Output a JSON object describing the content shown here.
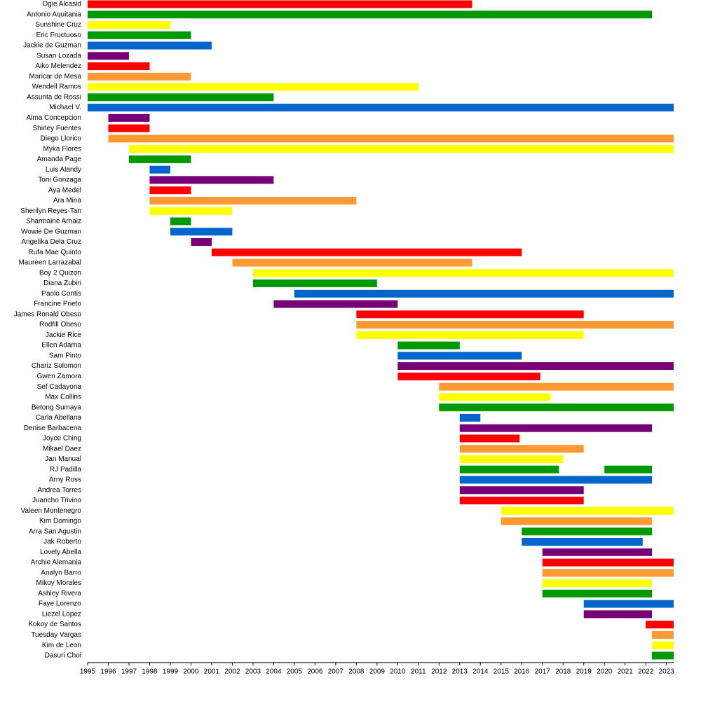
{
  "chart_data": {
    "type": "timeline",
    "xlim": [
      1995,
      2023.35
    ],
    "xticks": [
      1995,
      1996,
      1997,
      1998,
      1999,
      2000,
      2001,
      2002,
      2003,
      2004,
      2005,
      2006,
      2007,
      2008,
      2009,
      2010,
      2011,
      2012,
      2013,
      2014,
      2015,
      2016,
      2017,
      2018,
      2019,
      2020,
      2021,
      2022,
      2023
    ],
    "series": [
      {
        "name": "Ogie Alcasid",
        "color": "#ff0000",
        "values": [
          [
            1995,
            2013.6
          ]
        ]
      },
      {
        "name": "Antonio Aquitania",
        "color": "#009900",
        "values": [
          [
            1995,
            2022.3
          ]
        ]
      },
      {
        "name": "Sunshine Cruz",
        "color": "#ffff00",
        "values": [
          [
            1995,
            1999
          ]
        ]
      },
      {
        "name": "Eric Fructuoso",
        "color": "#009900",
        "values": [
          [
            1995,
            2000
          ]
        ]
      },
      {
        "name": "Jackie de Guzman",
        "color": "#0066cc",
        "values": [
          [
            1995,
            2001
          ]
        ]
      },
      {
        "name": "Susan Lozada",
        "color": "#770077",
        "values": [
          [
            1995,
            1997
          ]
        ]
      },
      {
        "name": "Aiko Melendez",
        "color": "#ff0000",
        "values": [
          [
            1995,
            1998
          ]
        ]
      },
      {
        "name": "Maricar de Mesa",
        "color": "#ff9933",
        "values": [
          [
            1995,
            2000
          ]
        ]
      },
      {
        "name": "Wendell Ramos",
        "color": "#ffff00",
        "values": [
          [
            1995,
            2011
          ]
        ]
      },
      {
        "name": "Assunta de Rossi",
        "color": "#009900",
        "values": [
          [
            1995,
            2004
          ]
        ]
      },
      {
        "name": "Michael V.",
        "color": "#0066cc",
        "values": [
          [
            1995,
            2023.35
          ]
        ]
      },
      {
        "name": "Alma Concepcion",
        "color": "#770077",
        "values": [
          [
            1996,
            1998
          ]
        ]
      },
      {
        "name": "Shirley Fuentes",
        "color": "#ff0000",
        "values": [
          [
            1996,
            1998
          ]
        ]
      },
      {
        "name": "Diego Llorico",
        "color": "#ff9933",
        "values": [
          [
            1996,
            2023.35
          ]
        ]
      },
      {
        "name": "Myka Flores",
        "color": "#ffff00",
        "values": [
          [
            1997,
            2023.35
          ]
        ]
      },
      {
        "name": "Amanda Page",
        "color": "#009900",
        "values": [
          [
            1997,
            2000
          ]
        ]
      },
      {
        "name": "Luis Alandy",
        "color": "#0066cc",
        "values": [
          [
            1998,
            1999
          ]
        ]
      },
      {
        "name": "Toni Gonzaga",
        "color": "#770077",
        "values": [
          [
            1998,
            2004
          ]
        ]
      },
      {
        "name": "Aya Medel",
        "color": "#ff0000",
        "values": [
          [
            1998,
            2000
          ]
        ]
      },
      {
        "name": "Ara Mina",
        "color": "#ff9933",
        "values": [
          [
            1998,
            2008
          ]
        ]
      },
      {
        "name": "Sherilyn Reyes-Tan",
        "color": "#ffff00",
        "values": [
          [
            1998,
            2002
          ]
        ]
      },
      {
        "name": "Sharmaine Arnaiz",
        "color": "#009900",
        "values": [
          [
            1999,
            2000
          ]
        ]
      },
      {
        "name": "Wowie De Guzman",
        "color": "#0066cc",
        "values": [
          [
            1999,
            2002
          ]
        ]
      },
      {
        "name": "Angelika Dela Cruz",
        "color": "#770077",
        "values": [
          [
            2000,
            2001
          ]
        ]
      },
      {
        "name": "Rufa Mae Quinto",
        "color": "#ff0000",
        "values": [
          [
            2001,
            2016
          ]
        ]
      },
      {
        "name": "Maureen Larrazabal",
        "color": "#ff9933",
        "values": [
          [
            2002,
            2013.6
          ]
        ]
      },
      {
        "name": "Boy 2 Quizon",
        "color": "#ffff00",
        "values": [
          [
            2003,
            2023.35
          ]
        ]
      },
      {
        "name": "Diana Zubiri",
        "color": "#009900",
        "values": [
          [
            2003,
            2009
          ]
        ]
      },
      {
        "name": "Paolo Contis",
        "color": "#0066cc",
        "values": [
          [
            2005,
            2023.35
          ]
        ]
      },
      {
        "name": "Francine Prieto",
        "color": "#770077",
        "values": [
          [
            2004,
            2010
          ]
        ]
      },
      {
        "name": "James Ronald Obeso",
        "color": "#ff0000",
        "values": [
          [
            2008,
            2019
          ]
        ]
      },
      {
        "name": "Rodfill Obeso",
        "color": "#ff9933",
        "values": [
          [
            2008,
            2023.35
          ]
        ]
      },
      {
        "name": "Jackie Rice",
        "color": "#ffff00",
        "values": [
          [
            2008,
            2019
          ]
        ]
      },
      {
        "name": "Ellen Adarna",
        "color": "#009900",
        "values": [
          [
            2010,
            2013
          ]
        ]
      },
      {
        "name": "Sam Pinto",
        "color": "#0066cc",
        "values": [
          [
            2010,
            2016
          ]
        ]
      },
      {
        "name": "Chariz Solomon",
        "color": "#770077",
        "values": [
          [
            2010,
            2023.35
          ]
        ]
      },
      {
        "name": "Gwen Zamora",
        "color": "#ff0000",
        "values": [
          [
            2010,
            2016.9
          ]
        ]
      },
      {
        "name": "Sef Cadayona",
        "color": "#ff9933",
        "values": [
          [
            2012,
            2023.35
          ]
        ]
      },
      {
        "name": "Max Collins",
        "color": "#ffff00",
        "values": [
          [
            2012,
            2017.4
          ]
        ]
      },
      {
        "name": "Betong Sumaya",
        "color": "#009900",
        "values": [
          [
            2012,
            2023.35
          ]
        ]
      },
      {
        "name": "Carla Abellana",
        "color": "#0066cc",
        "values": [
          [
            2013,
            2014
          ]
        ]
      },
      {
        "name": "Denise Barbacena",
        "color": "#770077",
        "values": [
          [
            2013,
            2022.3
          ]
        ]
      },
      {
        "name": "Joyce Ching",
        "color": "#ff0000",
        "values": [
          [
            2013,
            2015.9
          ]
        ]
      },
      {
        "name": "Mikael Daez",
        "color": "#ff9933",
        "values": [
          [
            2013,
            2019
          ]
        ]
      },
      {
        "name": "Jan Manual",
        "color": "#ffff00",
        "values": [
          [
            2013,
            2018
          ]
        ]
      },
      {
        "name": "RJ Padilla",
        "color": "#009900",
        "values": [
          [
            2013,
            2017.8
          ],
          [
            2020,
            2022.3
          ]
        ]
      },
      {
        "name": "Arny Ross",
        "color": "#0066cc",
        "values": [
          [
            2013,
            2022.3
          ]
        ]
      },
      {
        "name": "Andrea Torres",
        "color": "#770077",
        "values": [
          [
            2013,
            2019
          ]
        ]
      },
      {
        "name": "Juancho Trivino",
        "color": "#ff0000",
        "values": [
          [
            2013,
            2019
          ]
        ]
      },
      {
        "name": "Valeen Montenegro",
        "color": "#ffff00",
        "values": [
          [
            2015,
            2023.35
          ]
        ]
      },
      {
        "name": "Kim Domingo",
        "color": "#ff9933",
        "values": [
          [
            2015,
            2022.3
          ]
        ]
      },
      {
        "name": "Arra San Agustin",
        "color": "#009900",
        "values": [
          [
            2016,
            2022.3
          ]
        ]
      },
      {
        "name": "Jak Roberto",
        "color": "#0066cc",
        "values": [
          [
            2016,
            2021.85
          ]
        ]
      },
      {
        "name": "Lovely Abella",
        "color": "#770077",
        "values": [
          [
            2017,
            2022.3
          ]
        ]
      },
      {
        "name": "Archie Alemania",
        "color": "#ff0000",
        "values": [
          [
            2017,
            2023.35
          ]
        ]
      },
      {
        "name": "Analyn Barro",
        "color": "#ff9933",
        "values": [
          [
            2017,
            2023.35
          ]
        ]
      },
      {
        "name": "Mikoy Morales",
        "color": "#ffff00",
        "values": [
          [
            2017,
            2022.3
          ]
        ]
      },
      {
        "name": "Ashley Rivera",
        "color": "#009900",
        "values": [
          [
            2017,
            2022.3
          ]
        ]
      },
      {
        "name": "Faye Lorenzo",
        "color": "#0066cc",
        "values": [
          [
            2019,
            2023.35
          ]
        ]
      },
      {
        "name": "Liezel Lopez",
        "color": "#770077",
        "values": [
          [
            2019,
            2022.3
          ]
        ]
      },
      {
        "name": "Kokoy de Santos",
        "color": "#ff0000",
        "values": [
          [
            2022,
            2023.35
          ]
        ]
      },
      {
        "name": "Tuesday Vargas",
        "color": "#ff9933",
        "values": [
          [
            2022.3,
            2023.35
          ]
        ]
      },
      {
        "name": "Kim de Leon",
        "color": "#ffff00",
        "values": [
          [
            2022.3,
            2023.35
          ]
        ]
      },
      {
        "name": "Dasuri Choi",
        "color": "#009900",
        "values": [
          [
            2022.3,
            2023.35
          ]
        ]
      }
    ]
  }
}
